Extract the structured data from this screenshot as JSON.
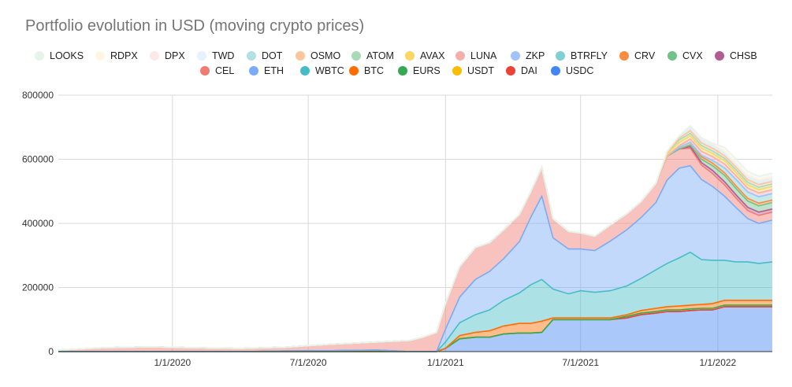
{
  "chart_data": {
    "type": "area",
    "stacked": true,
    "title": "Portfolio evolution in USD (moving crypto prices)",
    "xlabel": "",
    "ylabel": "",
    "ylim": [
      0,
      800000
    ],
    "yticks": [
      0,
      200000,
      400000,
      600000,
      800000
    ],
    "ytick_labels": [
      "0",
      "200000",
      "400000",
      "600000",
      "800000"
    ],
    "xlim": [
      "2019-08-01",
      "2022-03-15"
    ],
    "xticks": [
      "2020-01-01",
      "2020-07-01",
      "2021-01-01",
      "2021-07-01",
      "2022-01-01"
    ],
    "xtick_labels": [
      "1/1/2020",
      "7/1/2020",
      "1/1/2021",
      "7/1/2021",
      "1/1/2022"
    ],
    "grid": true,
    "legend_position": "top",
    "x": [
      "2019-08-01",
      "2019-10-01",
      "2019-12-01",
      "2020-02-01",
      "2020-04-01",
      "2020-06-01",
      "2020-08-01",
      "2020-10-01",
      "2020-11-15",
      "2020-12-01",
      "2020-12-20",
      "2021-01-01",
      "2021-01-20",
      "2021-02-10",
      "2021-03-01",
      "2021-03-20",
      "2021-04-10",
      "2021-04-25",
      "2021-05-10",
      "2021-05-25",
      "2021-06-15",
      "2021-07-01",
      "2021-07-20",
      "2021-08-10",
      "2021-09-01",
      "2021-09-20",
      "2021-10-10",
      "2021-10-25",
      "2021-11-10",
      "2021-11-25",
      "2021-12-10",
      "2021-12-25",
      "2022-01-10",
      "2022-01-25",
      "2022-02-10",
      "2022-02-25",
      "2022-03-15"
    ],
    "series": [
      {
        "name": "USDC",
        "color": "#4285f4",
        "values": [
          0,
          0,
          0,
          0,
          0,
          0,
          0,
          0,
          0,
          0,
          0,
          10000,
          40000,
          45000,
          45000,
          55000,
          58000,
          58000,
          60000,
          100000,
          100000,
          100000,
          100000,
          100000,
          105000,
          115000,
          120000,
          125000,
          125000,
          128000,
          130000,
          130000,
          140000,
          140000,
          140000,
          140000,
          140000
        ]
      },
      {
        "name": "DAI",
        "color": "#ea4335",
        "values": [
          0,
          0,
          0,
          0,
          0,
          0,
          0,
          0,
          0,
          0,
          0,
          0,
          0,
          0,
          0,
          0,
          0,
          0,
          0,
          0,
          0,
          0,
          0,
          0,
          0,
          0,
          0,
          0,
          0,
          0,
          0,
          0,
          0,
          0,
          0,
          0,
          0
        ]
      },
      {
        "name": "USDT",
        "color": "#fbbc04",
        "values": [
          0,
          0,
          0,
          0,
          0,
          0,
          0,
          0,
          0,
          0,
          0,
          0,
          0,
          0,
          0,
          0,
          0,
          0,
          0,
          0,
          0,
          0,
          0,
          0,
          5000,
          5000,
          5000,
          5000,
          5000,
          5000,
          5000,
          5000,
          5000,
          5000,
          5000,
          5000,
          5000
        ]
      },
      {
        "name": "EURS",
        "color": "#34a853",
        "values": [
          0,
          0,
          0,
          0,
          0,
          0,
          0,
          0,
          0,
          0,
          0,
          0,
          0,
          0,
          0,
          0,
          0,
          0,
          0,
          0,
          0,
          0,
          0,
          0,
          0,
          0,
          0,
          0,
          0,
          0,
          0,
          0,
          0,
          0,
          0,
          0,
          0
        ]
      },
      {
        "name": "BTC",
        "color": "#ff6d01",
        "values": [
          0,
          0,
          0,
          0,
          0,
          2000,
          3000,
          5000,
          0,
          0,
          0,
          0,
          10000,
          15000,
          20000,
          25000,
          30000,
          30000,
          35000,
          5000,
          5000,
          5000,
          5000,
          5000,
          5000,
          8000,
          10000,
          10000,
          12000,
          12000,
          12000,
          15000,
          15000,
          15000,
          15000,
          15000,
          15000
        ]
      },
      {
        "name": "WBTC",
        "color": "#46bdc6",
        "values": [
          0,
          0,
          0,
          0,
          0,
          0,
          0,
          0,
          0,
          0,
          0,
          20000,
          40000,
          55000,
          65000,
          80000,
          95000,
          120000,
          130000,
          90000,
          75000,
          85000,
          80000,
          85000,
          90000,
          100000,
          120000,
          135000,
          150000,
          165000,
          140000,
          135000,
          125000,
          120000,
          120000,
          115000,
          120000
        ]
      },
      {
        "name": "ETH",
        "color": "#7baaf7",
        "values": [
          0,
          0,
          0,
          0,
          0,
          0,
          0,
          0,
          0,
          0,
          0,
          40000,
          80000,
          110000,
          120000,
          130000,
          160000,
          210000,
          260000,
          160000,
          140000,
          130000,
          130000,
          155000,
          175000,
          190000,
          210000,
          260000,
          280000,
          270000,
          250000,
          230000,
          200000,
          170000,
          135000,
          125000,
          130000
        ]
      },
      {
        "name": "CEL",
        "color": "#f07b72",
        "values": [
          5000,
          12000,
          15000,
          12000,
          10000,
          12000,
          20000,
          25000,
          35000,
          45000,
          60000,
          80000,
          95000,
          100000,
          90000,
          90000,
          85000,
          80000,
          90000,
          60000,
          55000,
          50000,
          45000,
          50000,
          50000,
          50000,
          60000,
          75000,
          60000,
          55000,
          45000,
          40000,
          35000,
          30000,
          25000,
          25000,
          25000
        ]
      },
      {
        "name": "CHSB",
        "color": "#b25b92",
        "values": [
          0,
          0,
          0,
          0,
          0,
          0,
          0,
          0,
          0,
          0,
          0,
          0,
          0,
          0,
          0,
          0,
          0,
          0,
          0,
          0,
          0,
          0,
          0,
          0,
          0,
          0,
          0,
          0,
          0,
          5000,
          8000,
          10000,
          10000,
          10000,
          10000,
          10000,
          10000
        ]
      },
      {
        "name": "CVX",
        "color": "#71c287",
        "values": [
          0,
          0,
          0,
          0,
          0,
          0,
          0,
          0,
          0,
          0,
          0,
          0,
          0,
          0,
          0,
          0,
          0,
          0,
          0,
          0,
          0,
          0,
          0,
          0,
          0,
          0,
          0,
          0,
          0,
          5000,
          10000,
          15000,
          20000,
          20000,
          20000,
          20000,
          20000
        ]
      },
      {
        "name": "CRV",
        "color": "#fa8c41",
        "values": [
          0,
          0,
          0,
          0,
          0,
          0,
          0,
          0,
          0,
          0,
          0,
          0,
          0,
          0,
          0,
          0,
          0,
          0,
          0,
          0,
          0,
          0,
          0,
          0,
          0,
          0,
          0,
          0,
          5000,
          8000,
          8000,
          8000,
          8000,
          8000,
          8000,
          8000,
          8000
        ]
      },
      {
        "name": "BTRFLY",
        "color": "#7ed0d4",
        "values": [
          0,
          0,
          0,
          0,
          0,
          0,
          0,
          0,
          0,
          0,
          0,
          0,
          0,
          0,
          0,
          0,
          0,
          0,
          0,
          0,
          0,
          0,
          0,
          0,
          0,
          0,
          0,
          0,
          0,
          0,
          5000,
          8000,
          15000,
          20000,
          20000,
          20000,
          20000
        ]
      },
      {
        "name": "ZKP",
        "color": "#a0c3ff",
        "values": [
          0,
          0,
          0,
          0,
          0,
          0,
          0,
          0,
          0,
          0,
          0,
          0,
          0,
          0,
          0,
          0,
          0,
          0,
          0,
          0,
          0,
          0,
          0,
          0,
          0,
          0,
          0,
          0,
          0,
          0,
          0,
          0,
          0,
          0,
          0,
          0,
          0
        ]
      },
      {
        "name": "LUNA",
        "color": "#f5afab",
        "values": [
          0,
          0,
          0,
          0,
          0,
          0,
          0,
          0,
          0,
          0,
          0,
          0,
          0,
          0,
          0,
          0,
          0,
          0,
          0,
          0,
          0,
          0,
          0,
          0,
          0,
          0,
          0,
          0,
          5000,
          10000,
          12000,
          12000,
          12000,
          12000,
          12000,
          12000,
          12000
        ]
      },
      {
        "name": "AVAX",
        "color": "#fdd663",
        "values": [
          0,
          0,
          0,
          0,
          0,
          0,
          0,
          0,
          0,
          0,
          0,
          0,
          0,
          0,
          0,
          0,
          0,
          0,
          0,
          0,
          0,
          0,
          0,
          0,
          0,
          0,
          0,
          5000,
          10000,
          10000,
          10000,
          10000,
          10000,
          10000,
          10000,
          10000,
          10000
        ]
      },
      {
        "name": "ATOM",
        "color": "#a8dab5",
        "values": [
          0,
          0,
          0,
          0,
          0,
          0,
          0,
          0,
          0,
          0,
          0,
          0,
          0,
          0,
          0,
          0,
          0,
          0,
          0,
          0,
          0,
          0,
          0,
          0,
          0,
          0,
          0,
          5000,
          8000,
          8000,
          8000,
          8000,
          8000,
          8000,
          8000,
          8000,
          8000
        ]
      },
      {
        "name": "OSMO",
        "color": "#fcc59b",
        "values": [
          0,
          0,
          0,
          0,
          0,
          0,
          0,
          0,
          0,
          0,
          0,
          0,
          0,
          0,
          0,
          0,
          0,
          0,
          0,
          0,
          0,
          0,
          0,
          0,
          0,
          0,
          0,
          0,
          5000,
          8000,
          8000,
          8000,
          8000,
          8000,
          8000,
          8000,
          8000
        ]
      },
      {
        "name": "DOT",
        "color": "#b2e1e4",
        "values": [
          0,
          0,
          0,
          0,
          0,
          0,
          0,
          0,
          0,
          0,
          0,
          0,
          0,
          0,
          0,
          0,
          0,
          0,
          0,
          0,
          0,
          0,
          0,
          0,
          0,
          0,
          0,
          5000,
          8000,
          8000,
          8000,
          8000,
          8000,
          8000,
          8000,
          8000,
          8000
        ]
      },
      {
        "name": "TWD",
        "color": "#e8f0fe",
        "values": [
          0,
          0,
          0,
          0,
          0,
          0,
          0,
          0,
          0,
          0,
          0,
          0,
          0,
          0,
          0,
          0,
          0,
          0,
          0,
          0,
          0,
          0,
          0,
          0,
          0,
          0,
          0,
          0,
          0,
          0,
          0,
          0,
          0,
          0,
          0,
          0,
          0
        ]
      },
      {
        "name": "DPX",
        "color": "#fce8e6",
        "values": [
          0,
          0,
          0,
          0,
          0,
          0,
          0,
          0,
          0,
          0,
          0,
          0,
          0,
          0,
          0,
          0,
          0,
          0,
          0,
          0,
          0,
          0,
          0,
          0,
          0,
          0,
          0,
          0,
          0,
          5000,
          5000,
          5000,
          5000,
          5000,
          5000,
          5000,
          5000
        ]
      },
      {
        "name": "RDPX",
        "color": "#fef7e0",
        "values": [
          0,
          0,
          0,
          0,
          0,
          0,
          0,
          0,
          0,
          0,
          0,
          0,
          0,
          0,
          0,
          0,
          0,
          0,
          0,
          0,
          0,
          0,
          0,
          0,
          0,
          0,
          0,
          0,
          0,
          3000,
          3000,
          3000,
          3000,
          3000,
          3000,
          3000,
          3000
        ]
      },
      {
        "name": "LOOKS",
        "color": "#e6f4ea",
        "values": [
          0,
          0,
          0,
          0,
          0,
          0,
          0,
          0,
          0,
          0,
          0,
          0,
          0,
          0,
          0,
          0,
          0,
          0,
          0,
          0,
          0,
          0,
          0,
          0,
          0,
          0,
          0,
          0,
          0,
          0,
          0,
          0,
          10000,
          10000,
          10000,
          10000,
          10000
        ]
      }
    ]
  },
  "legend": {
    "row1": [
      {
        "label": "LOOKS",
        "color": "#e6f4ea"
      },
      {
        "label": "RDPX",
        "color": "#fef7e0"
      },
      {
        "label": "DPX",
        "color": "#fce8e6"
      },
      {
        "label": "TWD",
        "color": "#e8f0fe"
      },
      {
        "label": "DOT",
        "color": "#b2e1e4"
      },
      {
        "label": "OSMO",
        "color": "#fcc59b"
      },
      {
        "label": "ATOM",
        "color": "#a8dab5"
      },
      {
        "label": "AVAX",
        "color": "#fdd663"
      },
      {
        "label": "LUNA",
        "color": "#f5afab"
      },
      {
        "label": "ZKP",
        "color": "#a0c3ff"
      },
      {
        "label": "BTRFLY",
        "color": "#7ed0d4"
      },
      {
        "label": "CRV",
        "color": "#fa8c41"
      },
      {
        "label": "CVX",
        "color": "#71c287"
      },
      {
        "label": "CHSB",
        "color": "#b25b92"
      }
    ],
    "row2": [
      {
        "label": "CEL",
        "color": "#f07b72"
      },
      {
        "label": "ETH",
        "color": "#7baaf7"
      },
      {
        "label": "WBTC",
        "color": "#46bdc6"
      },
      {
        "label": "BTC",
        "color": "#ff6d01"
      },
      {
        "label": "EURS",
        "color": "#34a853"
      },
      {
        "label": "USDT",
        "color": "#fbbc04"
      },
      {
        "label": "DAI",
        "color": "#ea4335"
      },
      {
        "label": "USDC",
        "color": "#4285f4"
      }
    ]
  }
}
